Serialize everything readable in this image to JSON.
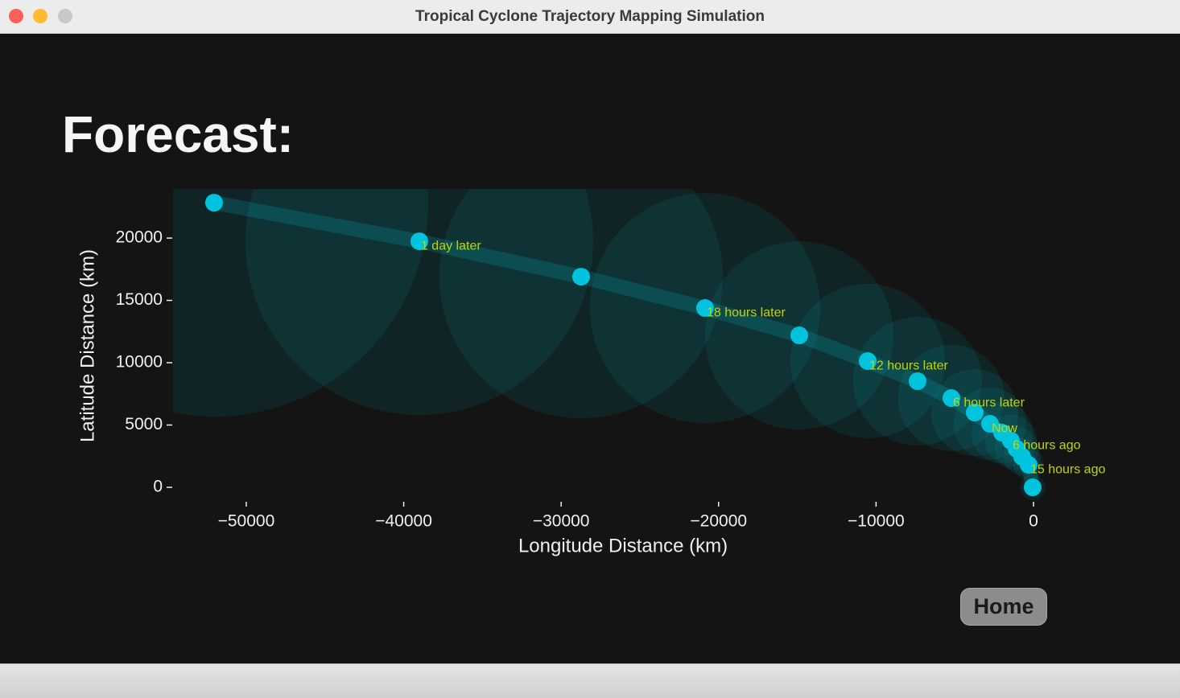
{
  "window": {
    "title": "Tropical Cyclone Trajectory Mapping Simulation"
  },
  "heading": "Forecast:",
  "chart_data": {
    "type": "scatter",
    "x_label": "Longitude Distance (km)",
    "y_label": "Latitude Distance (km)",
    "x": [
      -51,
      -307,
      -716,
      -1074,
      -1431,
      -1994,
      -2761,
      -3732,
      -5215,
      -7362,
      -10532,
      -14877,
      -20859,
      -28732,
      -39008,
      -52045
    ],
    "values": [
      0,
      1806,
      2452,
      3097,
      3742,
      4387,
      5097,
      6000,
      7161,
      8516,
      10129,
      12194,
      14387,
      16903,
      19742,
      22839
    ],
    "sizes": [
      1032,
      1226,
      1484,
      1742,
      2065,
      2452,
      2903,
      3484,
      4258,
      5161,
      6194,
      7548,
      9226,
      11355,
      13935,
      17160
    ],
    "point_labels": [
      null,
      "15 hours ago",
      null,
      null,
      "6 hours ago",
      null,
      "Now",
      null,
      "6 hours later",
      null,
      "12 hours later",
      null,
      "18 hours later",
      null,
      "1 day later",
      null
    ],
    "color": "#00c4de",
    "circle_color": "#00b8c8",
    "label_color": "#c4d400",
    "xlim": [
      -54650,
      1330
    ],
    "ylim": [
      -1030,
      23940
    ],
    "xticks": [
      {
        "value": -50000,
        "label": "−50000"
      },
      {
        "value": -40000,
        "label": "−40000"
      },
      {
        "value": -30000,
        "label": "−30000"
      },
      {
        "value": -20000,
        "label": "−20000"
      },
      {
        "value": -10000,
        "label": "−10000"
      },
      0
    ],
    "yticks": [
      0,
      5000,
      10000,
      15000,
      20000
    ]
  },
  "home_button": "Home"
}
